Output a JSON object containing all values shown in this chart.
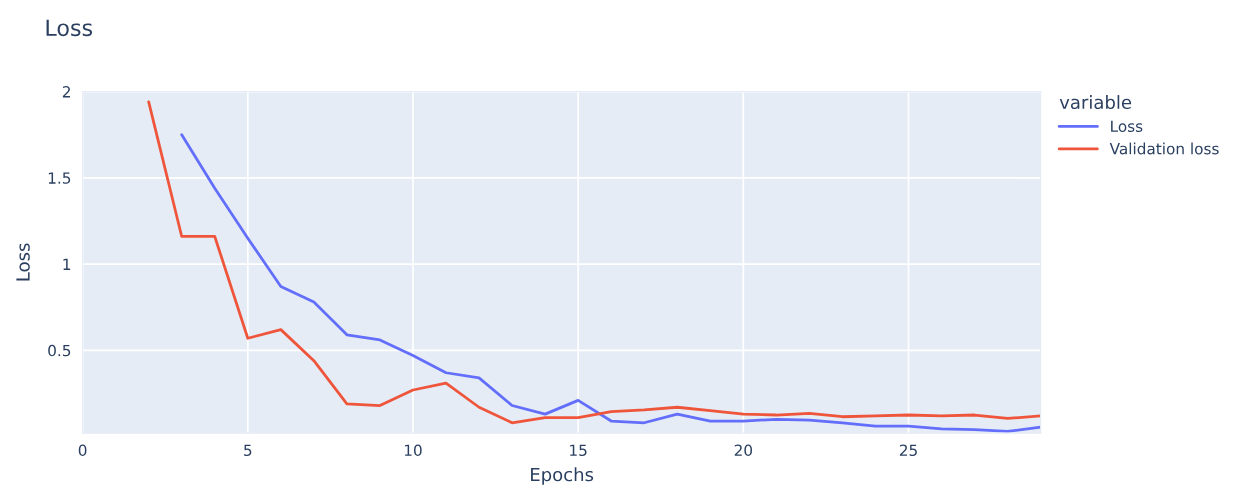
{
  "chart_data": {
    "type": "line",
    "title": "Loss",
    "xlabel": "Epochs",
    "ylabel": "Loss",
    "legend_title": "variable",
    "series": [
      {
        "name": "Loss",
        "color": "#636efa",
        "x": [
          3,
          4,
          5,
          6,
          7,
          8,
          9,
          10,
          11,
          12,
          13,
          14,
          15,
          16,
          17,
          18,
          19,
          20,
          21,
          22,
          23,
          24,
          25,
          26,
          27,
          28,
          29
        ],
        "values": [
          1.75,
          1.44,
          1.15,
          0.87,
          0.78,
          0.59,
          0.56,
          0.47,
          0.37,
          0.34,
          0.18,
          0.13,
          0.21,
          0.09,
          0.08,
          0.13,
          0.09,
          0.09,
          0.1,
          0.095,
          0.08,
          0.06,
          0.06,
          0.045,
          0.04,
          0.03,
          0.055
        ]
      },
      {
        "name": "Validation loss",
        "color": "#ef553b",
        "x": [
          2,
          3,
          4,
          5,
          6,
          7,
          8,
          9,
          10,
          11,
          12,
          13,
          14,
          15,
          16,
          17,
          18,
          19,
          20,
          21,
          22,
          23,
          24,
          25,
          26,
          27,
          28,
          29
        ],
        "values": [
          1.94,
          1.16,
          1.16,
          0.57,
          0.62,
          0.44,
          0.19,
          0.18,
          0.27,
          0.31,
          0.17,
          0.08,
          0.11,
          0.11,
          0.145,
          0.155,
          0.17,
          0.15,
          0.13,
          0.125,
          0.135,
          0.115,
          0.12,
          0.125,
          0.12,
          0.125,
          0.105,
          0.12
        ]
      }
    ],
    "xlim": [
      0,
      29
    ],
    "ylim": [
      0.02,
      2
    ],
    "xticks": [
      0,
      5,
      10,
      15,
      20,
      25
    ],
    "yticks": [
      0.5,
      1,
      1.5,
      2
    ],
    "grid": true,
    "legend": "right",
    "marker": "none",
    "line_style": "solid"
  }
}
